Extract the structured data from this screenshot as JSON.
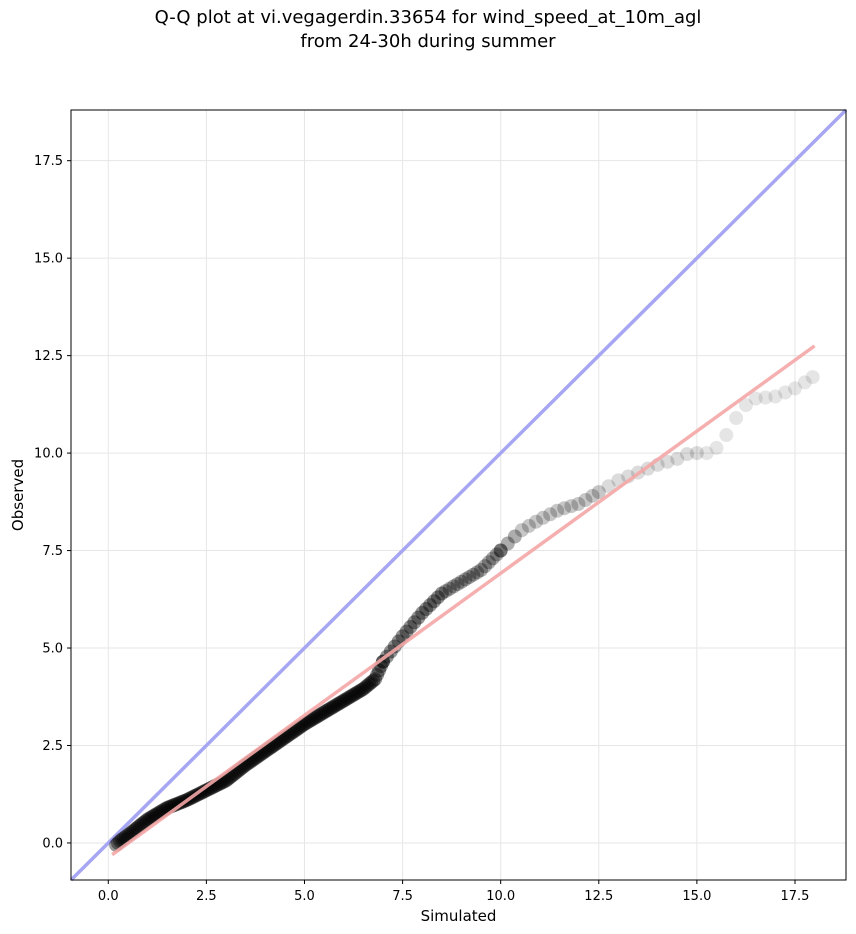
{
  "chart_data": {
    "type": "scatter",
    "title_lines": [
      "Q-Q plot at vi.vegagerdin.33654 for wind_speed_at_10m_agl",
      "from 24-30h during summer"
    ],
    "xlabel": "Simulated",
    "ylabel": "Observed",
    "xlim": [
      -0.95,
      18.8
    ],
    "ylim": [
      -0.95,
      18.8
    ],
    "x_ticks": [
      0.0,
      2.5,
      5.0,
      7.5,
      10.0,
      12.5,
      15.0,
      17.5
    ],
    "x_tick_labels": [
      "0.0",
      "2.5",
      "5.0",
      "7.5",
      "10.0",
      "12.5",
      "15.0",
      "17.5"
    ],
    "y_ticks": [
      0.0,
      2.5,
      5.0,
      7.5,
      10.0,
      12.5,
      15.0,
      17.5
    ],
    "y_tick_labels": [
      "0.0",
      "2.5",
      "5.0",
      "7.5",
      "10.0",
      "12.5",
      "15.0",
      "17.5"
    ],
    "grid": true,
    "reference_line": {
      "description": "y = x",
      "color": "#a6a6f2"
    },
    "fit_line": {
      "x": [
        0.1,
        18.0
      ],
      "y": [
        -0.3,
        12.75
      ],
      "color": "#f4a6a6"
    },
    "quantile_anchors": {
      "x": [
        0.2,
        0.3,
        0.5,
        1.0,
        1.5,
        2.0,
        2.5,
        3.0,
        3.5,
        4.0,
        4.5,
        5.0,
        5.5,
        6.0,
        6.5,
        6.8,
        7.0,
        7.5,
        8.0,
        8.5,
        9.0,
        9.5,
        10.0,
        10.5,
        11.0,
        11.5,
        12.0,
        12.5,
        13.0,
        13.5,
        14.0,
        14.5,
        14.8,
        15.3,
        15.6,
        15.8,
        16.0,
        16.2,
        16.5,
        17.0,
        17.6,
        17.8,
        17.95
      ],
      "y": [
        -0.05,
        0.05,
        0.2,
        0.6,
        0.9,
        1.1,
        1.35,
        1.6,
        2.0,
        2.35,
        2.7,
        3.05,
        3.35,
        3.65,
        3.95,
        4.2,
        4.65,
        5.3,
        5.9,
        6.4,
        6.7,
        7.0,
        7.5,
        8.0,
        8.3,
        8.55,
        8.7,
        9.0,
        9.3,
        9.5,
        9.7,
        9.85,
        10.0,
        10.0,
        10.2,
        10.55,
        10.9,
        11.2,
        11.4,
        11.45,
        11.7,
        11.85,
        11.95
      ]
    },
    "colors": {
      "points": "#000000",
      "axes": "#000000",
      "grid": "#e6e6e6"
    }
  }
}
